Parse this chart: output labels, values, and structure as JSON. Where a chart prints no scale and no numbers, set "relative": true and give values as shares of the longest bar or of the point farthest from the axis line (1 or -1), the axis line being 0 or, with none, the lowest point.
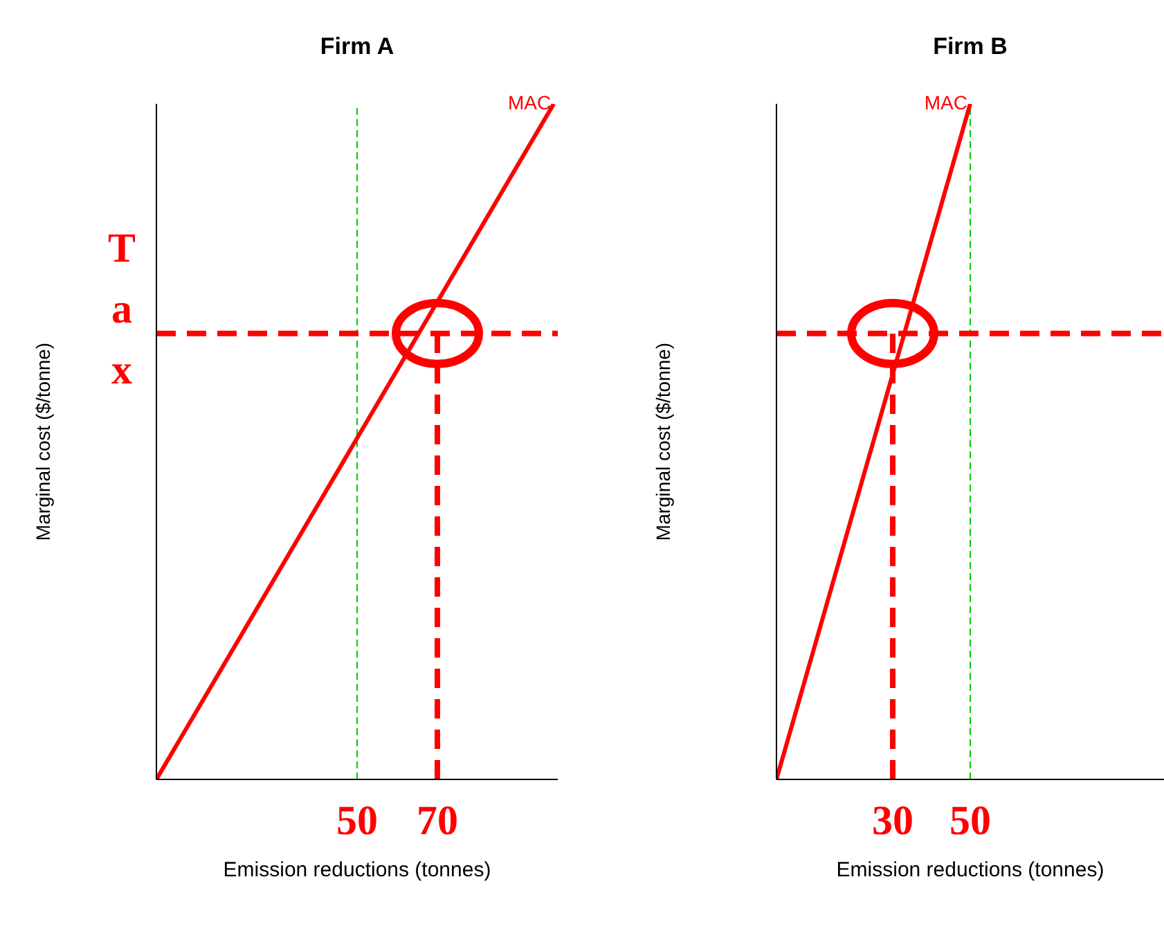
{
  "chart_data": [
    {
      "type": "line",
      "title": "Firm A",
      "xlabel": "Emission reductions (tonnes)",
      "ylabel": "Marginal cost ($/tonne)",
      "relative": true,
      "xlim": [
        0,
        100
      ],
      "xticks": [
        50,
        70
      ],
      "marker": "none",
      "series": [
        {
          "name": "MAC",
          "color": "#ff0000",
          "x": [
            0,
            99
          ],
          "values": [
            0,
            1
          ],
          "line_style": "solid"
        },
        {
          "color": "#ff0000",
          "x": [
            70,
            70
          ],
          "values": [
            0,
            0.66
          ],
          "line_style": "dashed"
        }
      ],
      "ref_lines": [
        {
          "axis": "x",
          "value": 50,
          "color": "#00cc00",
          "line_style": "dashed"
        },
        {
          "axis": "y",
          "value": 0.66,
          "label": "Tax",
          "color": "#ff0000",
          "line_style": "dashed"
        }
      ]
    },
    {
      "type": "line",
      "title": "Firm B",
      "xlabel": "Emission reductions (tonnes)",
      "ylabel": "Marginal cost ($/tonne)",
      "relative": true,
      "xlim": [
        0,
        100
      ],
      "xticks": [
        30,
        50
      ],
      "marker": "none",
      "series": [
        {
          "name": "MAC",
          "color": "#ff0000",
          "x": [
            0,
            50
          ],
          "values": [
            0,
            1
          ],
          "line_style": "solid"
        },
        {
          "color": "#ff0000",
          "x": [
            30,
            30
          ],
          "values": [
            0,
            0.66
          ],
          "line_style": "dashed"
        }
      ],
      "ref_lines": [
        {
          "axis": "x",
          "value": 50,
          "color": "#00cc00",
          "line_style": "dashed"
        },
        {
          "axis": "y",
          "value": 0.66,
          "color": "#ff0000",
          "line_style": "dashed"
        }
      ]
    }
  ]
}
